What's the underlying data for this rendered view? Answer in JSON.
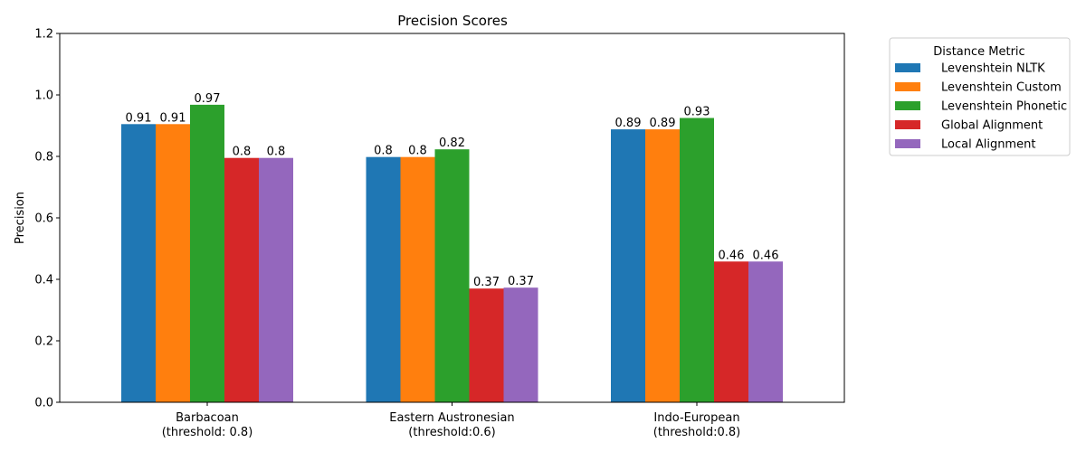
{
  "chart_data": {
    "type": "bar",
    "title": "Precision Scores",
    "xlabel": "",
    "ylabel": "Precision",
    "ylim": [
      0,
      1.2
    ],
    "yticks": [
      "0.0",
      "0.2",
      "0.4",
      "0.6",
      "0.8",
      "1.0",
      "1.2"
    ],
    "categories": [
      [
        "Barbacoan",
        "(threshold: 0.8)"
      ],
      [
        "Eastern Austronesian",
        "(threshold:0.6)"
      ],
      [
        "Indo-European",
        "(threshold:0.8)"
      ]
    ],
    "legend_title": "Distance Metric",
    "legend_position": "outside-right-top",
    "grid": false,
    "series": [
      {
        "name": "Levenshtein NLTK",
        "color": "#1f77b4",
        "values": [
          0.905,
          0.798,
          0.888
        ],
        "labels": [
          "0.91",
          "0.8",
          "0.89"
        ]
      },
      {
        "name": "Levenshtein Custom",
        "color": "#ff7f0e",
        "values": [
          0.905,
          0.798,
          0.888
        ],
        "labels": [
          "0.91",
          "0.8",
          "0.89"
        ]
      },
      {
        "name": "Levenshtein Phonetic",
        "color": "#2ca02c",
        "values": [
          0.968,
          0.823,
          0.925
        ],
        "labels": [
          "0.97",
          "0.82",
          "0.93"
        ]
      },
      {
        "name": "Global Alignment",
        "color": "#d62728",
        "values": [
          0.795,
          0.37,
          0.458
        ],
        "labels": [
          "0.8",
          "0.37",
          "0.46"
        ]
      },
      {
        "name": "Local Alignment",
        "color": "#9467bd",
        "values": [
          0.795,
          0.373,
          0.458
        ],
        "labels": [
          "0.8",
          "0.37",
          "0.46"
        ]
      }
    ]
  }
}
